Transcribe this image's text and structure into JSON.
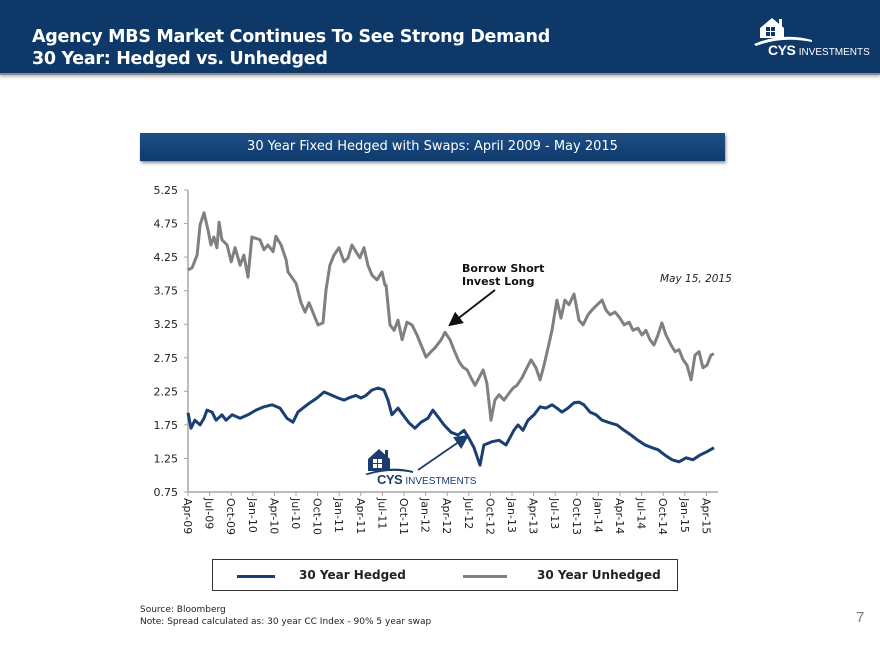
{
  "header": {
    "title_line1": "Agency MBS Market Continues To See Strong Demand",
    "title_line2": "30 Year: Hedged vs. Unhedged",
    "logo_brand": "CYS",
    "logo_suffix": "INVESTMENTS"
  },
  "colors": {
    "header_bg": "#0d3868",
    "hedged": "#1a3f73",
    "unhedged": "#808080"
  },
  "chart_data": {
    "type": "line",
    "title": "30 Year Fixed Hedged with Swaps: April 2009 - May 2015",
    "xlabel": "",
    "ylabel": "",
    "ylim": [
      0.75,
      5.25
    ],
    "yticks": [
      "5.25",
      "4.75",
      "4.25",
      "3.75",
      "3.25",
      "2.75",
      "2.25",
      "1.75",
      "1.25",
      "0.75"
    ],
    "ytick_values": [
      5.25,
      4.75,
      4.25,
      3.75,
      3.25,
      2.75,
      2.25,
      1.75,
      1.25,
      0.75
    ],
    "categories": [
      "Apr-09",
      "Jul-09",
      "Oct-09",
      "Jan-10",
      "Apr-10",
      "Jul-10",
      "Oct-10",
      "Jan-11",
      "Apr-11",
      "Jul-11",
      "Oct-11",
      "Jan-12",
      "Apr-12",
      "Jul-12",
      "Oct-12",
      "Jan-13",
      "Apr-13",
      "Jul-13",
      "Oct-13",
      "Jan-14",
      "Apr-14",
      "Jul-14",
      "Oct-14",
      "Jan-15",
      "Apr-15"
    ],
    "x_unit": "quarters since Apr-09",
    "xlim": [
      0,
      24.6
    ],
    "grid": false,
    "legend_position": "bottom",
    "series": [
      {
        "name": "30 Year Hedged",
        "color": "#1a3f73",
        "x": [
          0,
          0.14,
          0.32,
          0.56,
          0.74,
          0.88,
          1.11,
          1.3,
          1.57,
          1.76,
          2.04,
          2.41,
          2.78,
          3.15,
          3.52,
          3.89,
          4.26,
          4.58,
          4.86,
          5.09,
          5.32,
          5.65,
          5.97,
          6.3,
          6.67,
          6.95,
          7.22,
          7.5,
          7.78,
          8.01,
          8.24,
          8.52,
          8.8,
          9.07,
          9.26,
          9.44,
          9.72,
          9.95,
          10.23,
          10.51,
          10.79,
          11.11,
          11.34,
          11.62,
          11.85,
          12.18,
          12.5,
          12.78,
          13.01,
          13.24,
          13.52,
          13.7,
          14.07,
          14.4,
          14.72,
          15.09,
          15.28,
          15.51,
          15.74,
          16.02,
          16.3,
          16.57,
          16.85,
          17.08,
          17.31,
          17.59,
          17.87,
          18.1,
          18.33,
          18.61,
          18.89,
          19.17,
          19.54,
          19.86,
          20.19,
          20.51,
          20.83,
          21.16,
          21.48,
          21.76,
          22.08,
          22.41,
          22.73,
          23.06,
          23.38,
          23.7,
          24.03,
          24.35
        ],
        "values": [
          1.93,
          1.7,
          1.82,
          1.75,
          1.85,
          1.97,
          1.94,
          1.82,
          1.9,
          1.82,
          1.9,
          1.85,
          1.9,
          1.97,
          2.02,
          2.05,
          2.0,
          1.85,
          1.79,
          1.94,
          2.0,
          2.08,
          2.15,
          2.24,
          2.19,
          2.15,
          2.12,
          2.16,
          2.19,
          2.15,
          2.19,
          2.27,
          2.3,
          2.27,
          2.12,
          1.9,
          2.0,
          1.9,
          1.78,
          1.7,
          1.79,
          1.85,
          1.97,
          1.85,
          1.75,
          1.64,
          1.6,
          1.67,
          1.55,
          1.41,
          1.15,
          1.45,
          1.5,
          1.52,
          1.45,
          1.67,
          1.75,
          1.67,
          1.82,
          1.9,
          2.02,
          2.0,
          2.05,
          2.0,
          1.94,
          2.0,
          2.08,
          2.09,
          2.05,
          1.94,
          1.9,
          1.82,
          1.78,
          1.75,
          1.67,
          1.6,
          1.52,
          1.45,
          1.41,
          1.38,
          1.3,
          1.23,
          1.2,
          1.26,
          1.23,
          1.3,
          1.35,
          1.41
        ]
      },
      {
        "name": "30 Year Unhedged",
        "color": "#808080",
        "x": [
          0,
          0.19,
          0.42,
          0.56,
          0.74,
          0.93,
          1.06,
          1.2,
          1.34,
          1.44,
          1.57,
          1.81,
          2.0,
          2.18,
          2.41,
          2.59,
          2.78,
          2.96,
          3.33,
          3.52,
          3.7,
          3.94,
          4.07,
          4.31,
          4.54,
          4.63,
          5.0,
          5.23,
          5.42,
          5.6,
          5.83,
          6.02,
          6.25,
          6.39,
          6.57,
          6.76,
          6.99,
          7.22,
          7.41,
          7.59,
          7.78,
          7.96,
          8.15,
          8.33,
          8.52,
          8.75,
          8.98,
          9.17,
          9.35,
          9.12,
          9.54,
          9.72,
          9.91,
          10.14,
          10.37,
          10.6,
          10.79,
          11.02,
          11.25,
          11.44,
          11.72,
          11.9,
          12.13,
          12.31,
          12.55,
          12.73,
          12.92,
          13.1,
          13.29,
          13.47,
          13.66,
          13.84,
          14.03,
          14.21,
          14.4,
          14.63,
          14.81,
          15.05,
          15.23,
          15.46,
          15.69,
          15.88,
          16.11,
          16.3,
          16.48,
          16.67,
          16.85,
          17.08,
          17.27,
          17.45,
          17.64,
          17.87,
          18.1,
          18.29,
          18.52,
          18.7,
          18.94,
          19.17,
          19.35,
          19.54,
          19.77,
          20.0,
          20.19,
          20.42,
          20.6,
          20.83,
          21.02,
          21.2,
          21.39,
          21.57,
          21.76,
          21.94,
          22.13,
          22.36,
          22.55,
          22.73,
          22.92,
          23.1,
          23.29,
          23.47,
          23.66,
          23.84,
          24.03,
          24.21,
          24.35
        ],
        "values": [
          4.06,
          4.09,
          4.28,
          4.73,
          4.91,
          4.65,
          4.43,
          4.55,
          4.39,
          4.77,
          4.51,
          4.43,
          4.18,
          4.39,
          4.13,
          4.28,
          3.95,
          4.55,
          4.51,
          4.36,
          4.43,
          4.33,
          4.56,
          4.43,
          4.21,
          4.03,
          3.86,
          3.57,
          3.43,
          3.57,
          3.39,
          3.24,
          3.27,
          3.76,
          4.13,
          4.28,
          4.39,
          4.18,
          4.24,
          4.43,
          4.33,
          4.24,
          4.39,
          4.13,
          3.98,
          3.91,
          4.03,
          3.83,
          3.24,
          3.83,
          3.16,
          3.31,
          3.02,
          3.28,
          3.24,
          3.09,
          2.94,
          2.76,
          2.84,
          2.9,
          3.02,
          3.13,
          3.02,
          2.87,
          2.69,
          2.61,
          2.57,
          2.45,
          2.34,
          2.45,
          2.57,
          2.37,
          1.82,
          2.12,
          2.2,
          2.12,
          2.2,
          2.3,
          2.34,
          2.45,
          2.6,
          2.72,
          2.6,
          2.42,
          2.64,
          2.9,
          3.16,
          3.61,
          3.34,
          3.61,
          3.54,
          3.7,
          3.31,
          3.24,
          3.39,
          3.46,
          3.54,
          3.61,
          3.46,
          3.39,
          3.43,
          3.34,
          3.24,
          3.28,
          3.16,
          3.19,
          3.09,
          3.16,
          3.02,
          2.94,
          3.09,
          3.27,
          3.09,
          2.94,
          2.84,
          2.87,
          2.72,
          2.64,
          2.42,
          2.79,
          2.84,
          2.6,
          2.64,
          2.79,
          2.81
        ]
      }
    ],
    "annotations": [
      {
        "text_line1": "Borrow Short",
        "text_line2": "Invest Long",
        "points_to": "Unhedged series near Apr-12"
      },
      {
        "text": "May 15, 2015"
      },
      {
        "text": "CYS INVESTMENTS logo",
        "points_to": "Hedged series near Jul-12"
      }
    ]
  },
  "legend": {
    "hedged_label": "30 Year Hedged",
    "unhedged_label": "30 Year Unhedged"
  },
  "annotations": {
    "borrow_line1": "Borrow Short",
    "borrow_line2": "Invest Long",
    "date": "May 15, 2015",
    "logo_brand": "CYS",
    "logo_suffix": "INVESTMENTS"
  },
  "footer": {
    "source": "Source: Bloomberg",
    "note": "Note: Spread calculated as: 30 year CC  Index  - 90% 5 year swap",
    "page_number": "7"
  }
}
